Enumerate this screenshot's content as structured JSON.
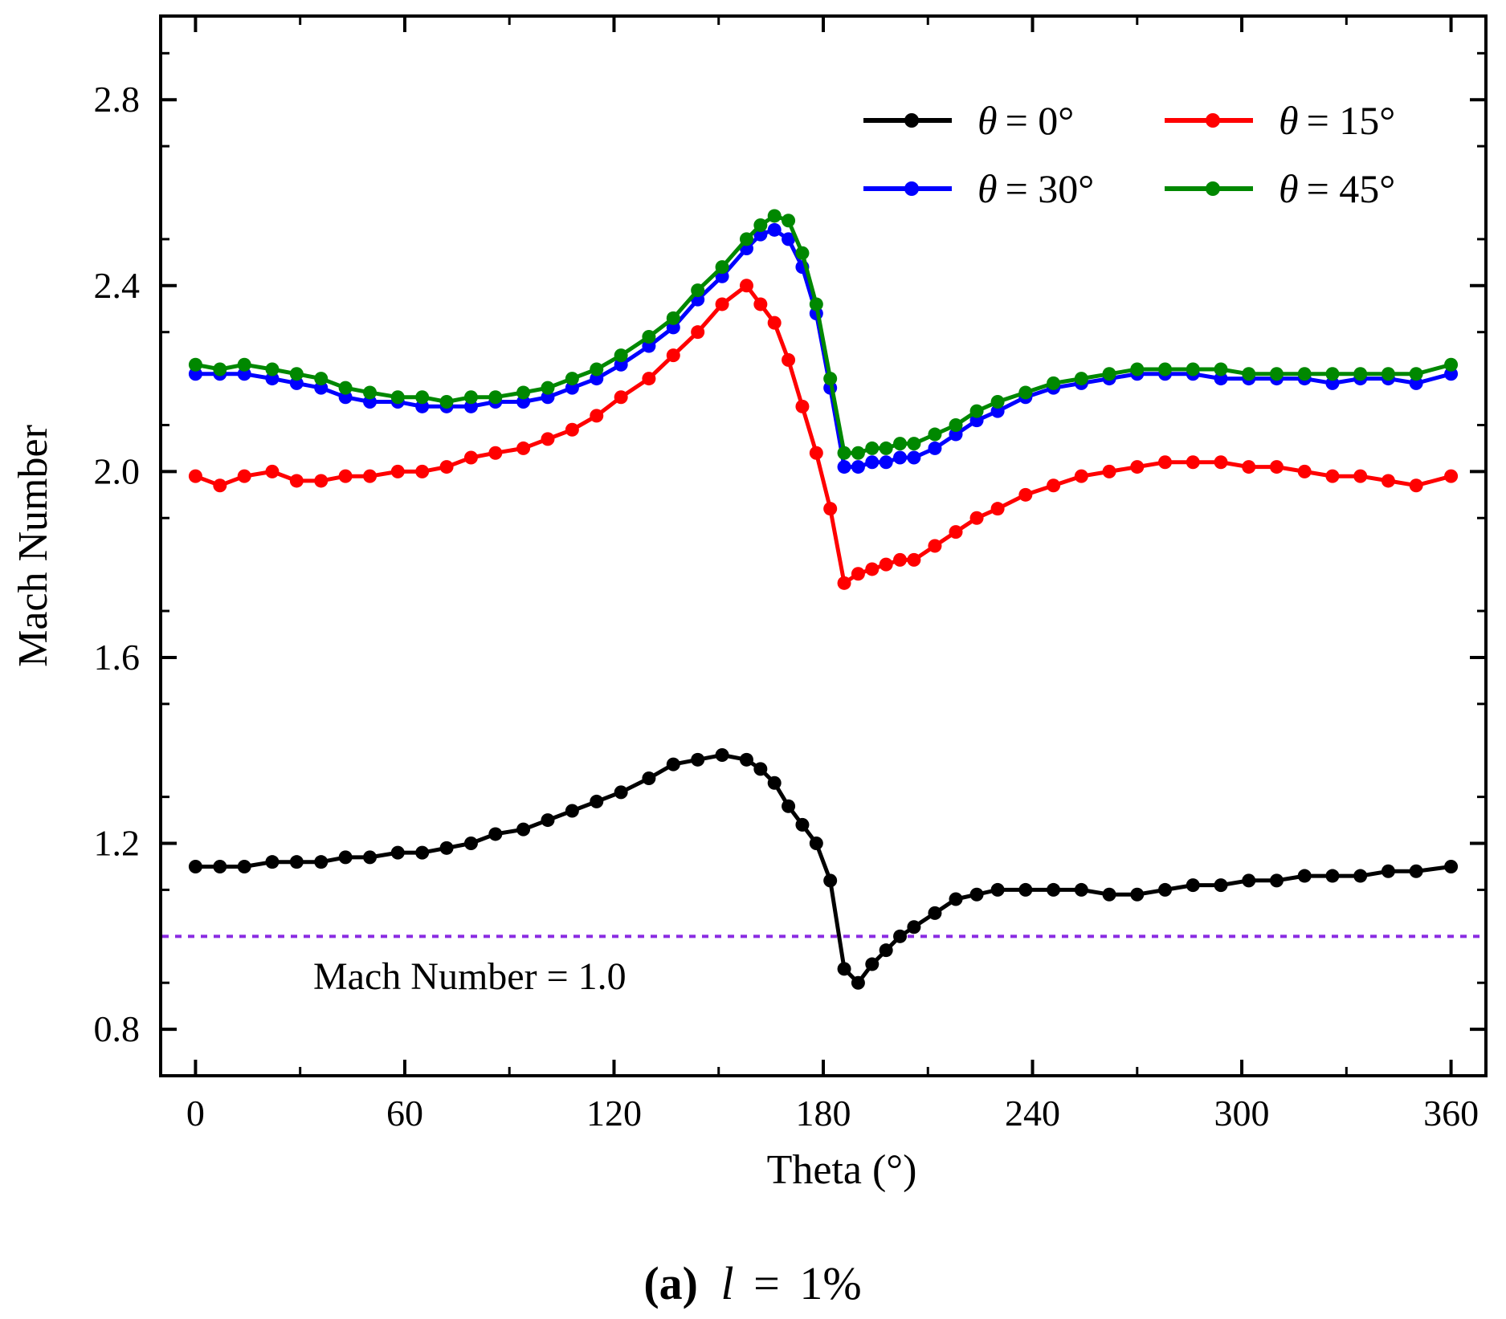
{
  "chart_data": {
    "type": "line",
    "title": "",
    "xlabel": "Theta (°)",
    "ylabel": "Mach Number",
    "xlim": [
      -10,
      370
    ],
    "ylim": [
      0.7,
      2.98
    ],
    "xticks": [
      0,
      60,
      120,
      180,
      240,
      300,
      360
    ],
    "yticks": [
      0.8,
      1.2,
      1.6,
      2.0,
      2.4,
      2.8
    ],
    "xtick_labels": [
      "0",
      "60",
      "120",
      "180",
      "240",
      "300",
      "360"
    ],
    "ytick_labels": [
      "0.8",
      "1.2",
      "1.6",
      "2.0",
      "2.4",
      "2.8"
    ],
    "grid": false,
    "legend_position": "top-right",
    "reference_line": {
      "y": 1.0,
      "label": "Mach Number = 1.0",
      "color": "#8a2be2"
    },
    "caption": {
      "part": "(a)",
      "param": "l",
      "value": "1%"
    },
    "x": [
      0,
      7,
      14,
      22,
      29,
      36,
      43,
      50,
      58,
      65,
      72,
      79,
      86,
      94,
      101,
      108,
      115,
      122,
      130,
      137,
      144,
      151,
      158,
      162,
      166,
      170,
      174,
      178,
      182,
      186,
      190,
      194,
      198,
      202,
      206,
      212,
      218,
      224,
      230,
      238,
      246,
      254,
      262,
      270,
      278,
      286,
      294,
      302,
      310,
      318,
      326,
      334,
      342,
      350,
      360
    ],
    "series": [
      {
        "name": "θ = 0°",
        "symbol": "θ",
        "eq": "= 0°",
        "color": "#000000",
        "values": [
          1.15,
          1.15,
          1.15,
          1.16,
          1.16,
          1.16,
          1.17,
          1.17,
          1.18,
          1.18,
          1.19,
          1.2,
          1.22,
          1.23,
          1.25,
          1.27,
          1.29,
          1.31,
          1.34,
          1.37,
          1.38,
          1.39,
          1.38,
          1.36,
          1.33,
          1.28,
          1.24,
          1.2,
          1.12,
          0.93,
          0.9,
          0.94,
          0.97,
          1.0,
          1.02,
          1.05,
          1.08,
          1.09,
          1.1,
          1.1,
          1.1,
          1.1,
          1.09,
          1.09,
          1.1,
          1.11,
          1.11,
          1.12,
          1.12,
          1.13,
          1.13,
          1.13,
          1.14,
          1.14,
          1.15
        ]
      },
      {
        "name": "θ = 15°",
        "symbol": "θ",
        "eq": "= 15°",
        "color": "#ff0000",
        "values": [
          1.99,
          1.97,
          1.99,
          2.0,
          1.98,
          1.98,
          1.99,
          1.99,
          2.0,
          2.0,
          2.01,
          2.03,
          2.04,
          2.05,
          2.07,
          2.09,
          2.12,
          2.16,
          2.2,
          2.25,
          2.3,
          2.36,
          2.4,
          2.36,
          2.32,
          2.24,
          2.14,
          2.04,
          1.92,
          1.76,
          1.78,
          1.79,
          1.8,
          1.81,
          1.81,
          1.84,
          1.87,
          1.9,
          1.92,
          1.95,
          1.97,
          1.99,
          2.0,
          2.01,
          2.02,
          2.02,
          2.02,
          2.01,
          2.01,
          2.0,
          1.99,
          1.99,
          1.98,
          1.97,
          1.99
        ]
      },
      {
        "name": "θ = 30°",
        "symbol": "θ",
        "eq": "= 30°",
        "color": "#0000ff",
        "values": [
          2.21,
          2.21,
          2.21,
          2.2,
          2.19,
          2.18,
          2.16,
          2.15,
          2.15,
          2.14,
          2.14,
          2.14,
          2.15,
          2.15,
          2.16,
          2.18,
          2.2,
          2.23,
          2.27,
          2.31,
          2.37,
          2.42,
          2.48,
          2.51,
          2.52,
          2.5,
          2.44,
          2.34,
          2.18,
          2.01,
          2.01,
          2.02,
          2.02,
          2.03,
          2.03,
          2.05,
          2.08,
          2.11,
          2.13,
          2.16,
          2.18,
          2.19,
          2.2,
          2.21,
          2.21,
          2.21,
          2.2,
          2.2,
          2.2,
          2.2,
          2.19,
          2.2,
          2.2,
          2.19,
          2.21
        ]
      },
      {
        "name": "θ = 45°",
        "symbol": "θ",
        "eq": "= 45°",
        "color": "#008800",
        "values": [
          2.23,
          2.22,
          2.23,
          2.22,
          2.21,
          2.2,
          2.18,
          2.17,
          2.16,
          2.16,
          2.15,
          2.16,
          2.16,
          2.17,
          2.18,
          2.2,
          2.22,
          2.25,
          2.29,
          2.33,
          2.39,
          2.44,
          2.5,
          2.53,
          2.55,
          2.54,
          2.47,
          2.36,
          2.2,
          2.04,
          2.04,
          2.05,
          2.05,
          2.06,
          2.06,
          2.08,
          2.1,
          2.13,
          2.15,
          2.17,
          2.19,
          2.2,
          2.21,
          2.22,
          2.22,
          2.22,
          2.22,
          2.21,
          2.21,
          2.21,
          2.21,
          2.21,
          2.21,
          2.21,
          2.23
        ]
      }
    ]
  }
}
